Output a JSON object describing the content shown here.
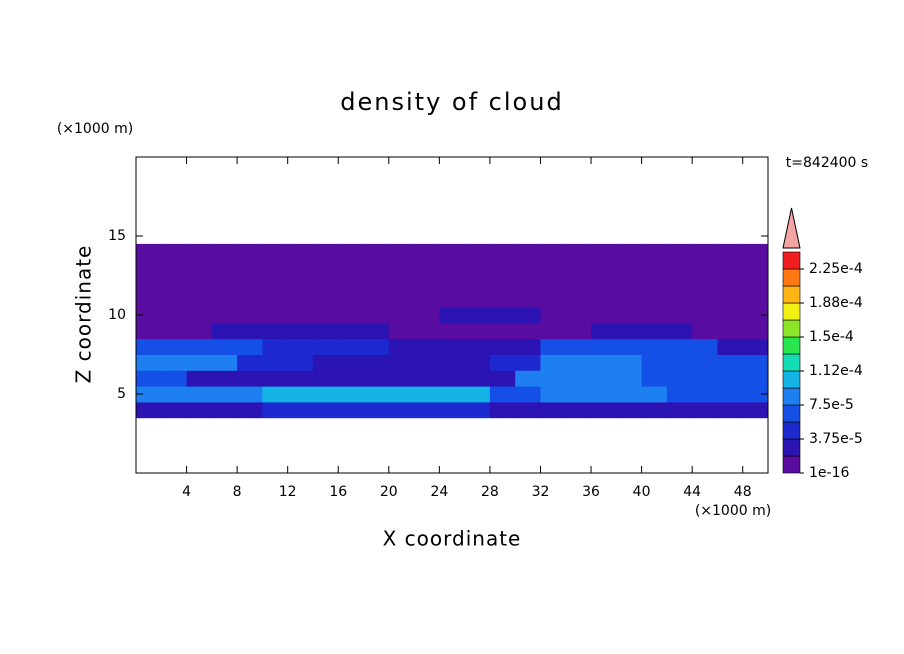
{
  "chart_data": {
    "type": "contour",
    "title": "density of cloud",
    "x_label": "X coordinate",
    "y_label": "Z coordinate",
    "x_unit": "(×1000 m)",
    "y_unit": "(×1000 m)",
    "annotation": "t=842400 s",
    "xlim": [
      0,
      50
    ],
    "ylim": [
      0,
      20
    ],
    "xticks": [
      4,
      8,
      12,
      16,
      20,
      24,
      28,
      32,
      36,
      40,
      44,
      48
    ],
    "yticks": [
      5,
      10,
      15
    ],
    "x_edges": [
      0,
      2,
      4,
      6,
      8,
      10,
      12,
      14,
      16,
      18,
      20,
      22,
      24,
      26,
      28,
      30,
      32,
      34,
      36,
      38,
      40,
      42,
      44,
      46,
      48,
      50
    ],
    "z_edges": [
      3.5,
      4.5,
      5.5,
      6.5,
      7.5,
      8.5,
      9.5,
      10.5,
      11.5,
      12.5,
      13.5,
      14.5
    ],
    "values": [
      [
        2.5e-05,
        2.5e-05,
        2.5e-05,
        2.5e-05,
        2.5e-05,
        4.5e-05,
        4.5e-05,
        4.5e-05,
        4.5e-05,
        4.5e-05,
        4.5e-05,
        4.5e-05,
        4.5e-05,
        4.5e-05,
        2.5e-05,
        2.5e-05,
        2.5e-05,
        2.5e-05,
        2.5e-05,
        2.5e-05,
        2.5e-05,
        2.5e-05,
        2.5e-05,
        2.5e-05,
        2.5e-05
      ],
      [
        8.5e-05,
        8.5e-05,
        8.5e-05,
        8.5e-05,
        8.5e-05,
        0.000105,
        0.000105,
        0.000105,
        0.000105,
        0.000105,
        0.000105,
        0.000105,
        0.000105,
        0.000105,
        6.5e-05,
        6.5e-05,
        8.5e-05,
        8.5e-05,
        8.5e-05,
        8.5e-05,
        8.5e-05,
        6.5e-05,
        6.5e-05,
        6.5e-05,
        6.5e-05
      ],
      [
        6.5e-05,
        6.5e-05,
        2.5e-05,
        2.5e-05,
        2.5e-05,
        2.5e-05,
        2.5e-05,
        2.5e-05,
        2.5e-05,
        2.5e-05,
        2.5e-05,
        2.5e-05,
        2.5e-05,
        2.5e-05,
        2.5e-05,
        8.5e-05,
        8.5e-05,
        8.5e-05,
        8.5e-05,
        8.5e-05,
        6.5e-05,
        6.5e-05,
        6.5e-05,
        6.5e-05,
        6.5e-05
      ],
      [
        8.5e-05,
        8.5e-05,
        8.5e-05,
        8.5e-05,
        4.5e-05,
        4.5e-05,
        4.5e-05,
        2.5e-05,
        2.5e-05,
        2.5e-05,
        2.5e-05,
        2.5e-05,
        2.5e-05,
        2.5e-05,
        4.5e-05,
        4.5e-05,
        8.5e-05,
        8.5e-05,
        8.5e-05,
        8.5e-05,
        6.5e-05,
        6.5e-05,
        6.5e-05,
        6.5e-05,
        6.5e-05
      ],
      [
        6.5e-05,
        6.5e-05,
        6.5e-05,
        6.5e-05,
        6.5e-05,
        4.5e-05,
        4.5e-05,
        4.5e-05,
        4.5e-05,
        4.5e-05,
        2.5e-05,
        2.5e-05,
        2.5e-05,
        2.5e-05,
        2.5e-05,
        2.5e-05,
        6.5e-05,
        6.5e-05,
        6.5e-05,
        6.5e-05,
        6.5e-05,
        6.5e-05,
        6.5e-05,
        2.5e-05,
        2.5e-05
      ],
      [
        1e-05,
        1e-05,
        1e-05,
        2.5e-05,
        2.5e-05,
        2.5e-05,
        2.5e-05,
        2.5e-05,
        2.5e-05,
        2.5e-05,
        1e-05,
        1e-05,
        1e-05,
        1e-05,
        1e-05,
        1e-05,
        1e-05,
        1e-05,
        2.5e-05,
        2.5e-05,
        2.5e-05,
        2.5e-05,
        1e-05,
        1e-05,
        1e-05
      ],
      [
        1e-05,
        1e-05,
        1e-05,
        1e-05,
        1e-05,
        1e-05,
        1e-05,
        1e-05,
        1e-05,
        1e-05,
        1e-05,
        1e-05,
        2.5e-05,
        2.5e-05,
        2.5e-05,
        2.5e-05,
        1e-05,
        1e-05,
        1e-05,
        1e-05,
        1e-05,
        1e-05,
        1e-05,
        1e-05,
        1e-05
      ],
      [
        1e-05,
        1e-05,
        1e-05,
        1e-05,
        1e-05,
        1e-05,
        1e-05,
        1e-05,
        1e-05,
        1e-05,
        1e-05,
        1e-05,
        1e-05,
        1e-05,
        1e-05,
        1e-05,
        1e-05,
        1e-05,
        1e-05,
        1e-05,
        1e-05,
        1e-05,
        1e-05,
        1e-05,
        1e-05
      ],
      [
        1e-05,
        1e-05,
        1e-05,
        1e-05,
        1e-05,
        1e-05,
        1e-05,
        1e-05,
        1e-05,
        1e-05,
        1e-05,
        1e-05,
        1e-05,
        1e-05,
        1e-05,
        1e-05,
        1e-05,
        1e-05,
        1e-05,
        1e-05,
        1e-05,
        1e-05,
        1e-05,
        1e-05,
        1e-05
      ],
      [
        1e-05,
        1e-05,
        1e-05,
        1e-05,
        1e-05,
        1e-05,
        1e-05,
        1e-05,
        1e-05,
        1e-05,
        1e-05,
        1e-05,
        1e-05,
        1e-05,
        1e-05,
        1e-05,
        1e-05,
        1e-05,
        1e-05,
        1e-05,
        1e-05,
        1e-05,
        1e-05,
        1e-05,
        1e-05
      ],
      [
        1e-05,
        1e-05,
        1e-05,
        1e-05,
        1e-05,
        1e-05,
        1e-05,
        1e-05,
        1e-05,
        1e-05,
        1e-05,
        1e-05,
        1e-05,
        1e-05,
        1e-05,
        1e-05,
        1e-05,
        1e-05,
        1e-05,
        1e-05,
        1e-05,
        1e-05,
        1e-05,
        1e-05,
        1e-05
      ]
    ],
    "levels": [
      1e-16,
      1.875e-05,
      3.75e-05,
      5.625e-05,
      7.5e-05,
      9.375e-05,
      0.0001125,
      0.00013125,
      0.00015,
      0.00016875,
      0.0001875,
      0.00020625,
      0.000225
    ],
    "colors": [
      "#580ca0",
      "#2c14b4",
      "#1c2ad0",
      "#1450e6",
      "#1e80f0",
      "#14b4e6",
      "#14dcb4",
      "#28e650",
      "#8ce628",
      "#f0f014",
      "#ffb414",
      "#ff7814",
      "#f01e1e"
    ],
    "extend_color": "#f4a4a4",
    "colorbar_ticks": [
      1e-16,
      {
        "value": 3.75e-05,
        "label": "3.75e-5"
      },
      {
        "value": 7.5e-05,
        "label": "7.5e-5"
      },
      {
        "value": 0.0001125,
        "label": "1.12e-4"
      },
      {
        "value": 0.00015,
        "label": "1.5e-4"
      },
      {
        "value": 0.0001875,
        "label": "1.88e-4"
      },
      {
        "value": 0.000225,
        "label": "2.25e-4"
      }
    ]
  }
}
